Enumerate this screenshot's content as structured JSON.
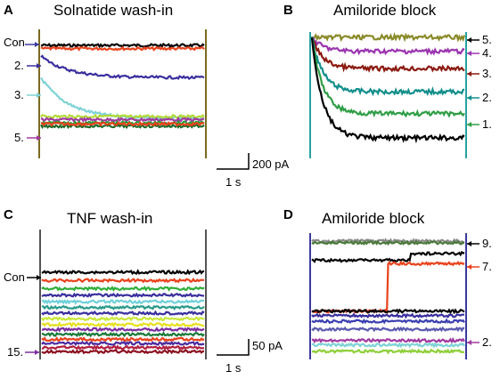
{
  "chart_data": [
    {
      "type": "line",
      "panel": "A",
      "title": "Solnatide wash-in",
      "trace_labels": [
        "Con",
        "2.",
        "3.",
        "5."
      ],
      "scale_bar": {
        "y": "200 pA",
        "x": "1 s"
      },
      "series": [
        {
          "color": "#000000",
          "shape": "flat",
          "level": 0.0
        },
        {
          "color": "#e8431c",
          "shape": "flat",
          "level": 0.03
        },
        {
          "color": "#3a2f9e",
          "shape": "decay",
          "start": 0.1,
          "level": 0.3
        },
        {
          "color": "#7fd3d6",
          "shape": "decay",
          "start": 0.3,
          "level": 0.68
        },
        {
          "color": "#b5d93a",
          "shape": "flat",
          "level": 0.66
        },
        {
          "color": "#a03aa0",
          "shape": "flat",
          "level": 0.69
        },
        {
          "color": "#2a9a3a",
          "shape": "flat",
          "level": 0.72
        },
        {
          "color": "#1f6b2a",
          "shape": "flat",
          "level": 0.75
        },
        {
          "color": "#e8431c",
          "shape": "flat",
          "level": 0.73
        }
      ]
    },
    {
      "type": "line",
      "panel": "B",
      "title": "Amiloride block",
      "trace_labels": [
        "5.",
        "4.",
        "3.",
        "2.",
        "1."
      ],
      "series": [
        {
          "color": "#8a8a2a",
          "shape": "flat",
          "level": 0.0
        },
        {
          "color": "#9b35b0",
          "shape": "rise",
          "level": 0.12
        },
        {
          "color": "#8b1a10",
          "shape": "rise",
          "level": 0.27
        },
        {
          "color": "#138f8c",
          "shape": "rise",
          "level": 0.47
        },
        {
          "color": "#2f9e46",
          "shape": "rise",
          "level": 0.66
        },
        {
          "color": "#000000",
          "shape": "rise",
          "level": 0.87
        }
      ]
    },
    {
      "type": "line",
      "panel": "C",
      "title": "TNF wash-in",
      "trace_labels": [
        "Con",
        "15."
      ],
      "scale_bar": {
        "y": "50 pA",
        "x": "1 s"
      },
      "series": [
        {
          "color": "#000000",
          "shape": "flat",
          "level": 0.0
        },
        {
          "color": "#e8431c",
          "shape": "flat",
          "level": 0.1
        },
        {
          "color": "#2fae3a",
          "shape": "flat",
          "level": 0.2
        },
        {
          "color": "#3a2f9e",
          "shape": "flat",
          "level": 0.28
        },
        {
          "color": "#6fd0d8",
          "shape": "flat",
          "level": 0.36
        },
        {
          "color": "#2a9a8a",
          "shape": "flat",
          "level": 0.43
        },
        {
          "color": "#3a2f9e",
          "shape": "flat",
          "level": 0.5
        },
        {
          "color": "#c8e83a",
          "shape": "flat",
          "level": 0.57
        },
        {
          "color": "#e8e020",
          "shape": "flat",
          "level": 0.64
        },
        {
          "color": "#7b2fa0",
          "shape": "flat",
          "level": 0.7
        },
        {
          "color": "#1a7a3a",
          "shape": "flat",
          "level": 0.76
        },
        {
          "color": "#e8431c",
          "shape": "flat",
          "level": 0.82
        },
        {
          "color": "#4a2aa0",
          "shape": "flat",
          "level": 0.87
        },
        {
          "color": "#b02040",
          "shape": "flat",
          "level": 0.92
        },
        {
          "color": "#8b1020",
          "shape": "flat",
          "level": 0.97
        }
      ]
    },
    {
      "type": "line",
      "panel": "D",
      "title": "Amiloride block",
      "trace_labels": [
        "9.",
        "7.",
        "2."
      ],
      "series": [
        {
          "color": "#8a8a8a",
          "shape": "flat",
          "level": 0.0
        },
        {
          "color": "#4a7a3a",
          "shape": "flat",
          "level": 0.015
        },
        {
          "color": "#000000",
          "shape": "step",
          "level": 0.17,
          "level2": 0.11,
          "at": 0.65
        },
        {
          "color": "#e8431c",
          "shape": "step",
          "level": 0.62,
          "level2": 0.2,
          "at": 0.5
        },
        {
          "color": "#000000",
          "shape": "flat",
          "level": 0.62
        },
        {
          "color": "#3a2f9e",
          "shape": "flat",
          "level": 0.66
        },
        {
          "color": "#3a3fb0",
          "shape": "flat",
          "level": 0.71
        },
        {
          "color": "#5a5ab0",
          "shape": "flat",
          "level": 0.78
        },
        {
          "color": "#a03aa0",
          "shape": "flat",
          "level": 0.88
        },
        {
          "color": "#7fd3d6",
          "shape": "flat",
          "level": 0.92
        },
        {
          "color": "#8fcf3a",
          "shape": "flat",
          "level": 0.975
        }
      ]
    }
  ]
}
